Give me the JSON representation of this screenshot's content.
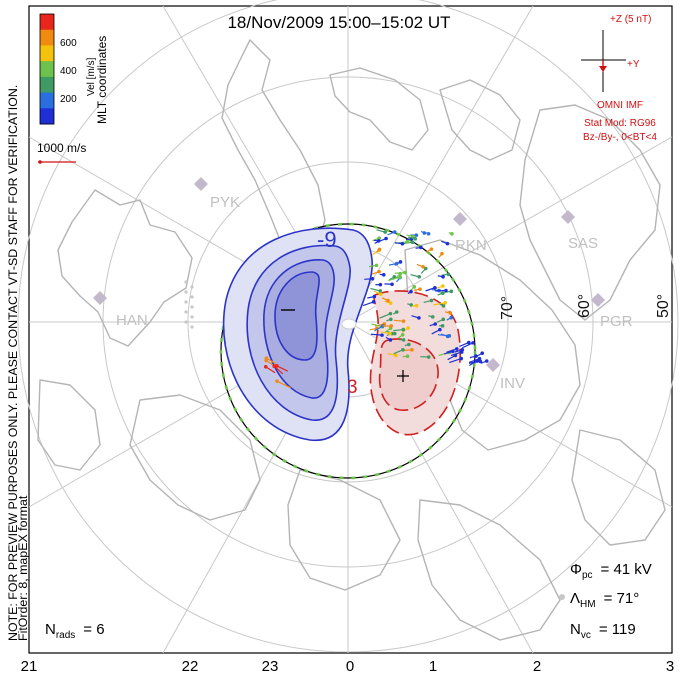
{
  "title": "18/Nov/2009  15:00–15:02  UT",
  "colorbar": {
    "ticks": [
      "600",
      "400",
      "200"
    ],
    "label": "Vel [m/s]",
    "colors": [
      "#e8261c",
      "#f08a10",
      "#f4c20a",
      "#6cc24a",
      "#3f9a63",
      "#2a6fe0",
      "#1f2fd6"
    ]
  },
  "coordinates_label": "MLT coordinates",
  "scale_vector": "1000 m/s",
  "vertical_note": "NOTE: FOR PREVIEW PURPOSES ONLY. PLEASE CONTACT VT-SD STAFF FOR VERIFICATION.",
  "fit_info": "FitOrder: 8, mapEX format",
  "imf": {
    "plus_z": "+Z (5 nT)",
    "plus_y": "+Y",
    "source": "OMNI IMF",
    "model": "Stat Mod: RG96",
    "conditions": "Bz-/By-, 0<BT<4"
  },
  "stations": [
    "PYK",
    "HAN",
    "RKN",
    "SAS",
    "PGR",
    "INV"
  ],
  "latitude_labels": [
    "70°",
    "60°",
    "50°"
  ],
  "contours": {
    "negative_label": "-9",
    "positive_label": "3"
  },
  "stats": {
    "phi_symbol": "Φ",
    "phi_sub": "pc",
    "phi_value": "= 41  kV",
    "lambda_symbol": "Λ",
    "lambda_sub": "HM",
    "lambda_value": "= 71°",
    "nvc_symbol": "N",
    "nvc_sub": "vc",
    "nvc_value": "= 119",
    "nrads_symbol": "N",
    "nrads_sub": "rads",
    "nrads_value": "= 6"
  },
  "mlt_axis": [
    "21",
    "22",
    "23",
    "0",
    "1",
    "2",
    "3"
  ],
  "palette": {
    "coast": "#b4b4b4",
    "grid": "#c8c8c8",
    "negative_fill": "#dfe1f4",
    "negative_core": "#8f93d8",
    "negative_line": "#2b34c8",
    "positive_fill": "#f3dcdc",
    "positive_line": "#d02020",
    "boundary": "#6cc24a",
    "imf_text": "#d01010"
  }
}
